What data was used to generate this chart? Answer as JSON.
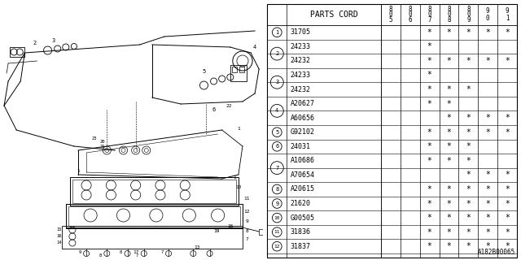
{
  "title": "A182B00065",
  "header": "PARTS CORD",
  "col_headers": [
    "8\n0\n5",
    "8\n0\n6",
    "8\n0\n7",
    "8\n0\n8",
    "8\n0\n9",
    "9\n0",
    "9\n1"
  ],
  "rows": [
    {
      "num": 1,
      "parts": [
        {
          "code": "31705",
          "marks": [
            0,
            0,
            1,
            1,
            1,
            1,
            1
          ]
        }
      ]
    },
    {
      "num": 2,
      "parts": [
        {
          "code": "24233",
          "marks": [
            0,
            0,
            1,
            0,
            0,
            0,
            0
          ]
        },
        {
          "code": "24232",
          "marks": [
            0,
            0,
            1,
            1,
            1,
            1,
            1
          ]
        }
      ]
    },
    {
      "num": 3,
      "parts": [
        {
          "code": "24233",
          "marks": [
            0,
            0,
            1,
            0,
            0,
            0,
            0
          ]
        },
        {
          "code": "24232",
          "marks": [
            0,
            0,
            1,
            1,
            1,
            0,
            0
          ]
        }
      ]
    },
    {
      "num": 4,
      "parts": [
        {
          "code": "A20627",
          "marks": [
            0,
            0,
            1,
            1,
            0,
            0,
            0
          ]
        },
        {
          "code": "A60656",
          "marks": [
            0,
            0,
            0,
            1,
            1,
            1,
            1
          ]
        }
      ]
    },
    {
      "num": 5,
      "parts": [
        {
          "code": "G92102",
          "marks": [
            0,
            0,
            1,
            1,
            1,
            1,
            1
          ]
        }
      ]
    },
    {
      "num": 6,
      "parts": [
        {
          "code": "24031",
          "marks": [
            0,
            0,
            1,
            1,
            1,
            0,
            0
          ]
        }
      ]
    },
    {
      "num": 7,
      "parts": [
        {
          "code": "A10686",
          "marks": [
            0,
            0,
            1,
            1,
            1,
            0,
            0
          ]
        },
        {
          "code": "A70654",
          "marks": [
            0,
            0,
            0,
            0,
            1,
            1,
            1
          ]
        }
      ]
    },
    {
      "num": 8,
      "parts": [
        {
          "code": "A20615",
          "marks": [
            0,
            0,
            1,
            1,
            1,
            1,
            1
          ]
        }
      ]
    },
    {
      "num": 9,
      "parts": [
        {
          "code": "21620",
          "marks": [
            0,
            0,
            1,
            1,
            1,
            1,
            1
          ]
        }
      ]
    },
    {
      "num": 10,
      "parts": [
        {
          "code": "G00505",
          "marks": [
            0,
            0,
            1,
            1,
            1,
            1,
            1
          ]
        }
      ]
    },
    {
      "num": 11,
      "parts": [
        {
          "code": "31836",
          "marks": [
            0,
            0,
            1,
            1,
            1,
            1,
            1
          ]
        }
      ]
    },
    {
      "num": 12,
      "parts": [
        {
          "code": "31837",
          "marks": [
            0,
            0,
            1,
            1,
            1,
            1,
            1
          ]
        }
      ]
    }
  ],
  "bg_color": "#ffffff",
  "line_color": "#000000",
  "text_color": "#000000"
}
